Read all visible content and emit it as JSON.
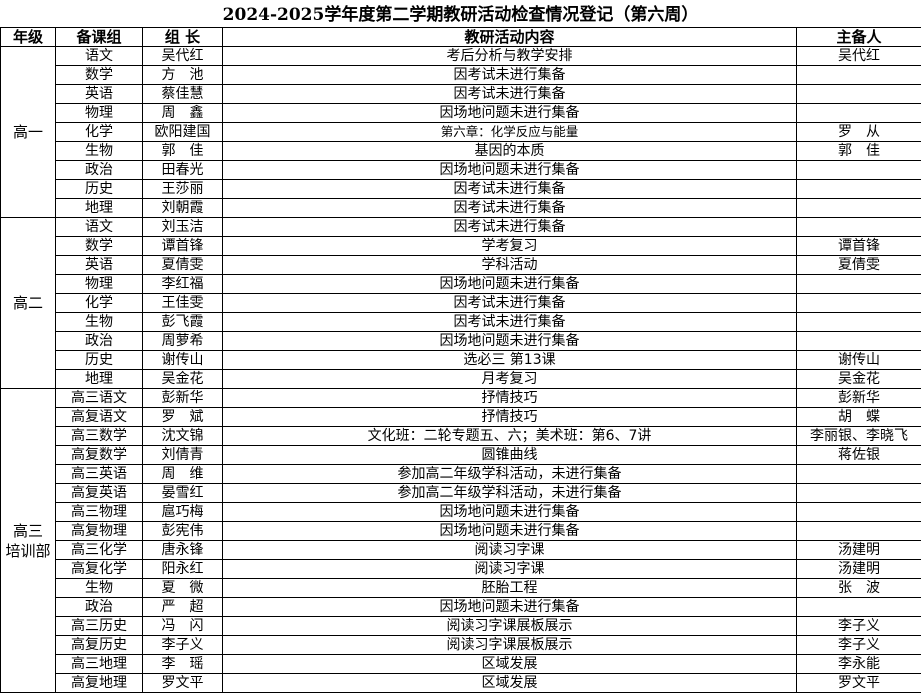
{
  "title": "2024-2025学年度第二学期教研活动检查情况登记（第六周）",
  "headers": [
    "年级",
    "备课组",
    "组 长",
    "教研活动内容",
    "主备人"
  ],
  "groups": [
    {
      "grade": "高一",
      "rows": [
        [
          "语文",
          "吴代红",
          "考后分析与教学安排",
          "吴代红"
        ],
        [
          "数学",
          "方　池",
          "因考试未进行集备",
          ""
        ],
        [
          "英语",
          "蔡佳慧",
          "因考试未进行集备",
          ""
        ],
        [
          "物理",
          "周　鑫",
          "因场地问题未进行集备",
          ""
        ],
        [
          "化学",
          "欧阳建国",
          "第六章：化学反应与能量",
          "罗　从"
        ],
        [
          "生物",
          "郭　佳",
          "基因的本质",
          "郭　佳"
        ],
        [
          "政治",
          "田春光",
          "因场地问题未进行集备",
          ""
        ],
        [
          "历史",
          "王莎丽",
          "因考试未进行集备",
          ""
        ],
        [
          "地理",
          "刘朝霞",
          "因考试未进行集备",
          ""
        ]
      ]
    },
    {
      "grade": "高二",
      "rows": [
        [
          "语文",
          "刘玉洁",
          "因考试未进行集备",
          ""
        ],
        [
          "数学",
          "谭首锋",
          "学考复习",
          "谭首锋"
        ],
        [
          "英语",
          "夏倩雯",
          "学科活动",
          "夏倩雯"
        ],
        [
          "物理",
          "李红福",
          "因场地问题未进行集备",
          ""
        ],
        [
          "化学",
          "王佳雯",
          "因考试未进行集备",
          ""
        ],
        [
          "生物",
          "彭飞霞",
          "因考试未进行集备",
          ""
        ],
        [
          "政治",
          "周萝希",
          "因场地问题未进行集备",
          ""
        ],
        [
          "历史",
          "谢传山",
          "选必三 第13课",
          "谢传山"
        ],
        [
          "地理",
          "吴金花",
          "月考复习",
          "吴金花"
        ]
      ]
    },
    {
      "grade": "高三\n培训部",
      "rows": [
        [
          "高三语文",
          "彭新华",
          "抒情技巧",
          "彭新华"
        ],
        [
          "高复语文",
          "罗　斌",
          "抒情技巧",
          "胡　蝶"
        ],
        [
          "高三数学",
          "沈文锦",
          "文化班：二轮专题五、六；美术班：第6、7讲",
          "李丽银、李晓飞"
        ],
        [
          "高复数学",
          "刘倩青",
          "圆锥曲线",
          "蒋佐银"
        ],
        [
          "高三英语",
          "周　维",
          "参加高二年级学科活动，未进行集备",
          ""
        ],
        [
          "高复英语",
          "晏雪红",
          "参加高二年级学科活动，未进行集备",
          ""
        ],
        [
          "高三物理",
          "扈巧梅",
          "因场地问题未进行集备",
          ""
        ],
        [
          "高复物理",
          "彭宪伟",
          "因场地问题未进行集备",
          ""
        ],
        [
          "高三化学",
          "唐永锋",
          "阅读习字课",
          "汤建明"
        ],
        [
          "高复化学",
          "阳永红",
          "阅读习字课",
          "汤建明"
        ],
        [
          "生物",
          "夏　微",
          "胚胎工程",
          "张　波"
        ],
        [
          "政治",
          "严　超",
          "因场地问题未进行集备",
          ""
        ],
        [
          "高三历史",
          "冯　闪",
          "阅读习字课展板展示",
          "李子义"
        ],
        [
          "高复历史",
          "李子义",
          "阅读习字课展板展示",
          "李子义"
        ],
        [
          "高三地理",
          "李　瑶",
          "区域发展",
          "李永能"
        ],
        [
          "高复地理",
          "罗文平",
          "区域发展",
          "罗文平"
        ]
      ]
    }
  ]
}
